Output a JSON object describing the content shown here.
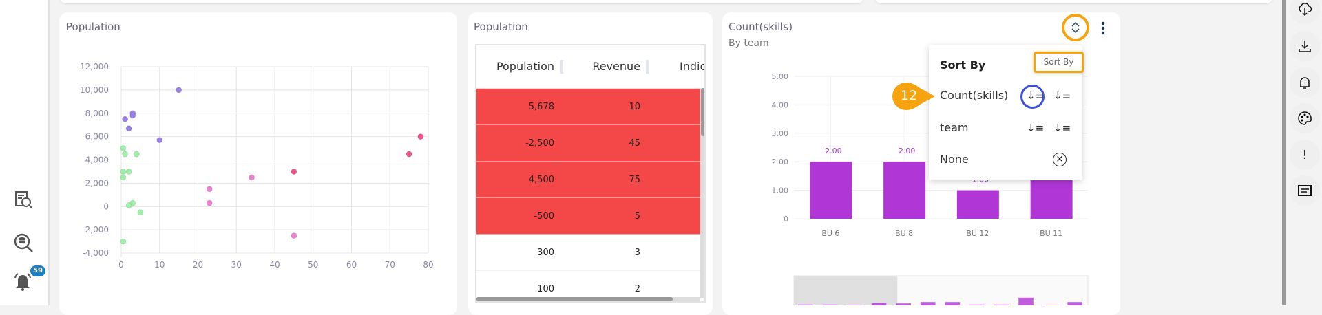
{
  "left_sidebar": {
    "notification_count": "59",
    "icons": [
      "report-icon",
      "database-search-icon",
      "bell-icon"
    ]
  },
  "right_sidebar": {
    "icons": [
      "cloud-download-icon",
      "download-icon",
      "bell-icon",
      "palette-icon",
      "alert-icon",
      "comment-icon"
    ],
    "alert_glyph": "!"
  },
  "scatter_card": {
    "title": "Population"
  },
  "table_card": {
    "title": "Population",
    "columns": [
      "Population",
      "Revenue",
      "Indic"
    ],
    "rows": [
      {
        "population": "5,678",
        "revenue": "10",
        "highlight": true
      },
      {
        "population": "-2,500",
        "revenue": "45",
        "highlight": true
      },
      {
        "population": "4,500",
        "revenue": "75",
        "highlight": true
      },
      {
        "population": "-500",
        "revenue": "5",
        "highlight": true
      },
      {
        "population": "300",
        "revenue": "3",
        "highlight": false
      },
      {
        "population": "100",
        "revenue": "2",
        "highlight": false
      }
    ],
    "highlight_color": "#f44848"
  },
  "bar_card": {
    "title": "Count(skills)",
    "subtitle": "By team",
    "sort_menu": {
      "title": "Sort By",
      "tooltip": "Sort By",
      "items": [
        {
          "label": "Count(skills)",
          "selected": "descending"
        },
        {
          "label": "team"
        },
        {
          "label": "None"
        }
      ]
    },
    "step_badge": "12"
  },
  "chart_data": [
    {
      "type": "scatter",
      "title": "Population",
      "xlim": [
        0,
        80
      ],
      "ylim": [
        -4000,
        12000
      ],
      "x_ticks": [
        "0",
        "10",
        "20",
        "30",
        "40",
        "50",
        "60",
        "70",
        "80"
      ],
      "y_ticks": [
        "12,000",
        "10,000",
        "8,000",
        "6,000",
        "4,000",
        "2,000",
        "0",
        "-2,000",
        "-4,000"
      ],
      "grid": true,
      "series": [
        {
          "color": "#9a80e6",
          "points": [
            [
              15,
              10000
            ],
            [
              3,
              8000
            ],
            [
              3,
              7800
            ],
            [
              1,
              7500
            ],
            [
              2,
              6700
            ],
            [
              10,
              5700
            ]
          ]
        },
        {
          "color": "#9ef2a8",
          "points": [
            [
              0.5,
              5000
            ],
            [
              1,
              4500
            ],
            [
              4,
              4500
            ],
            [
              0.5,
              3000
            ],
            [
              2,
              3000
            ],
            [
              0.5,
              2500
            ],
            [
              3,
              300
            ],
            [
              2,
              100
            ],
            [
              5,
              -500
            ],
            [
              0.5,
              -3000
            ]
          ]
        },
        {
          "color": "#ef82d0",
          "points": [
            [
              23,
              1500
            ],
            [
              23,
              300
            ],
            [
              34,
              2500
            ],
            [
              45,
              -2500
            ]
          ]
        },
        {
          "color": "#f4528e",
          "points": [
            [
              45,
              3000
            ],
            [
              75,
              4500
            ],
            [
              78,
              6000
            ]
          ]
        }
      ]
    },
    {
      "type": "bar",
      "title": "Count(skills)",
      "subtitle": "By team",
      "categories": [
        "BU 6",
        "BU 8",
        "BU 12",
        "BU 11"
      ],
      "values": [
        2,
        2,
        1,
        2
      ],
      "data_labels": [
        "2.00",
        "2.00",
        "1.00",
        "2.00"
      ],
      "ylim": [
        0,
        5
      ],
      "y_ticks": [
        "5.00",
        "4.00",
        "3.00",
        "2.00",
        "1.00",
        "0"
      ],
      "color": "#b036d6",
      "grid": true,
      "navigator_values": [
        0.15,
        0.15,
        0.1,
        0.45,
        0.35,
        0.6,
        0.6,
        0.15,
        0.15,
        1.4,
        0.1,
        0.6
      ],
      "navigator_selected": [
        0,
        3
      ]
    }
  ]
}
